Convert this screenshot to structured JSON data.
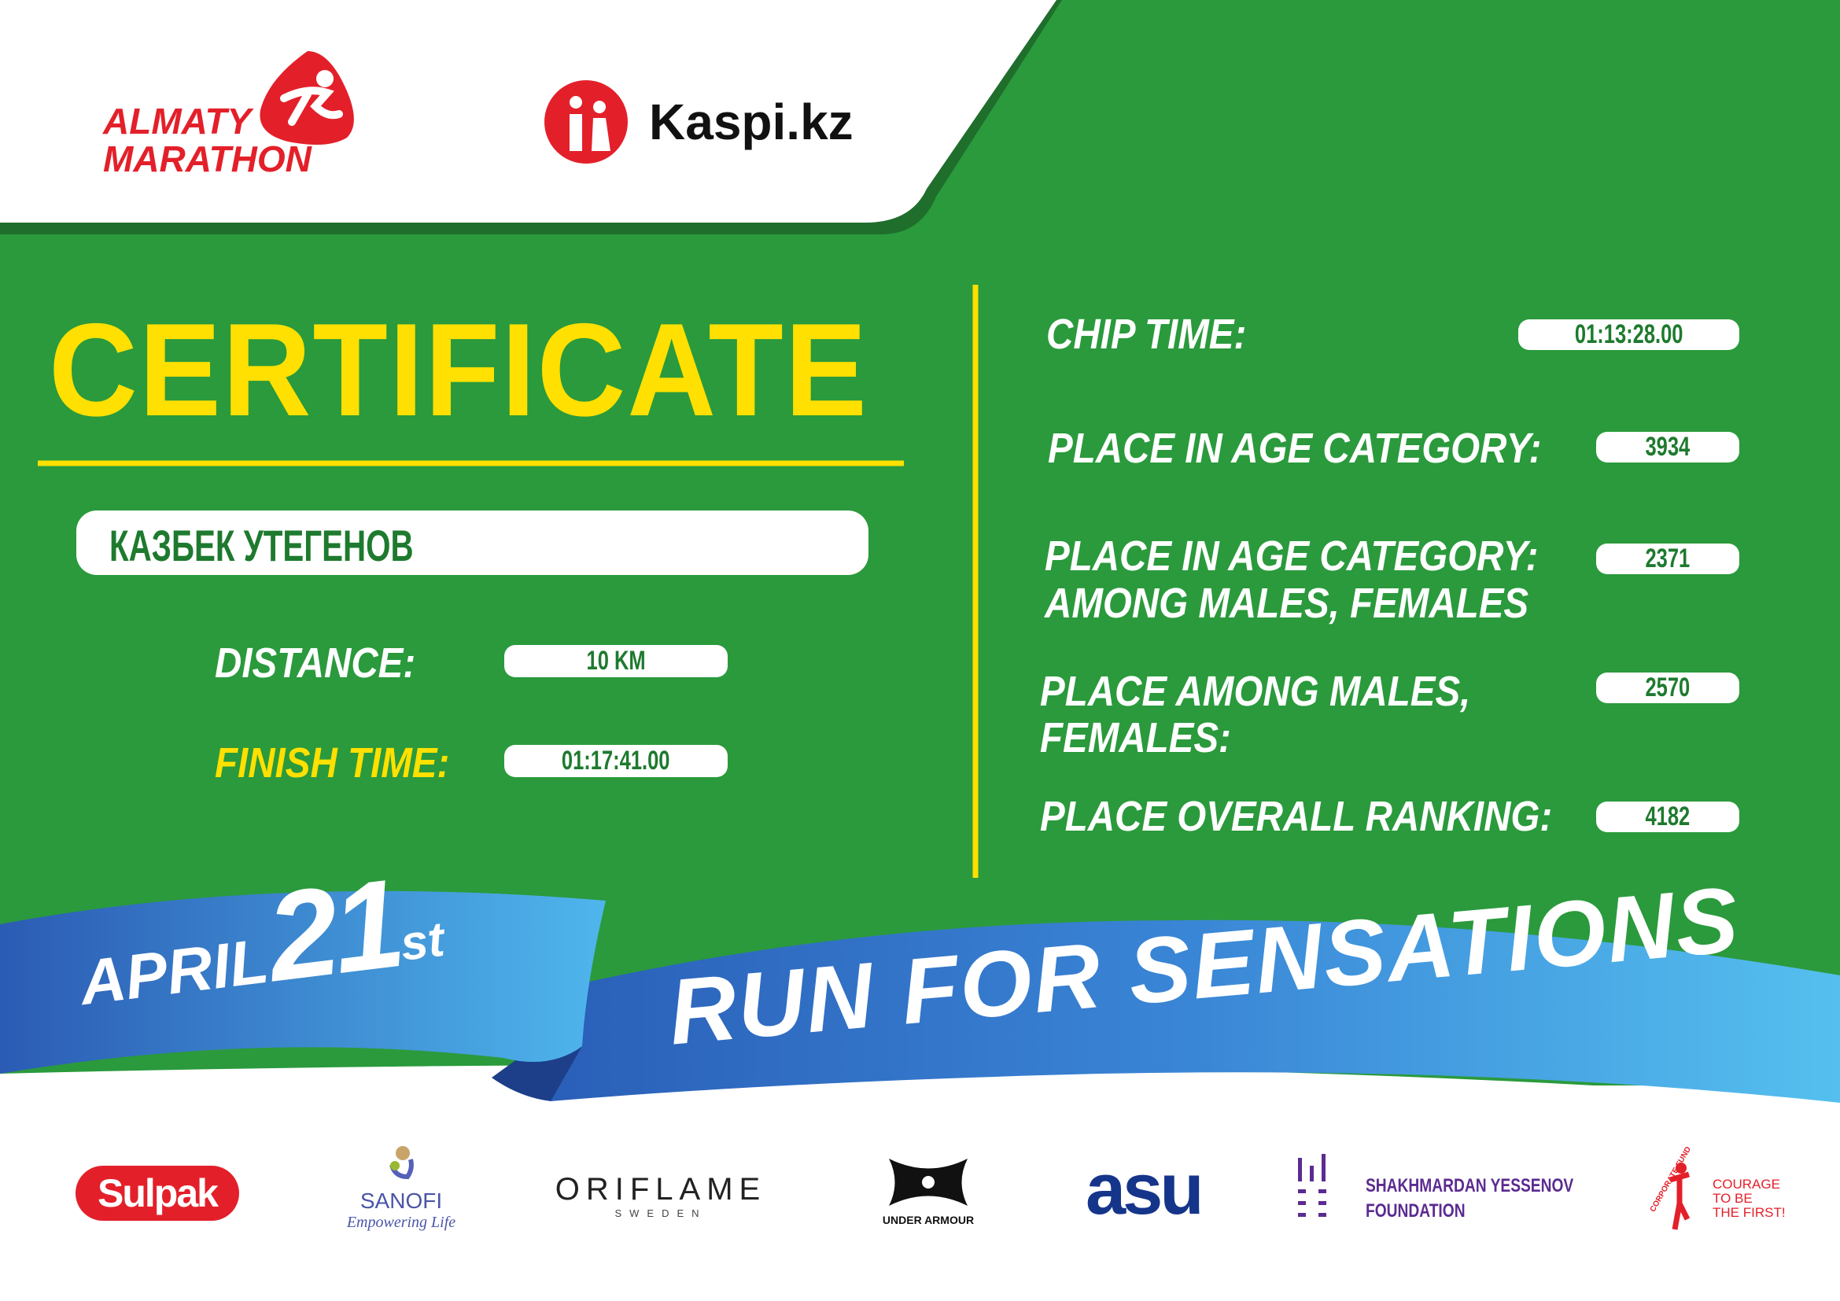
{
  "header": {
    "logo_main": "ALMATY MARATHON",
    "logo_sponsor": "Kaspi.kz"
  },
  "certificate": {
    "title": "CERTIFICATE",
    "runner_name": "КАЗБЕК УТЕГЕНОВ",
    "distance_label": "DISTANCE:",
    "distance_value": "10 KM",
    "finish_label": "FINISH TIME:",
    "finish_value": "01:17:41.00"
  },
  "results": {
    "chip_label": "CHIP TIME:",
    "chip_value": "01:13:28.00",
    "age_cat_label": "PLACE IN AGE CATEGORY:",
    "age_cat_value": "3934",
    "age_cat_gender_label_1": "PLACE IN AGE CATEGORY:",
    "age_cat_gender_label_2": "AMONG MALES, FEMALES",
    "age_cat_gender_value": "2371",
    "gender_label_1": "PLACE AMONG MALES,",
    "gender_label_2": "FEMALES:",
    "gender_value": "2570",
    "overall_label": "PLACE OVERALL RANKING:",
    "overall_value": "4182"
  },
  "ribbon": {
    "month": "APRIL",
    "day": "21",
    "suffix": "st",
    "slogan": "RUN FOR SENSATIONS"
  },
  "sponsors": {
    "sulpak": "Sulpak",
    "sanofi": "SANOFI",
    "sanofi_tagline": "Empowering Life",
    "oriflame": "ORIFLAME",
    "oriflame_sub": "SWEDEN",
    "under_armour": "UNDER ARMOUR",
    "asu": "asu",
    "yessenov_1": "SHAKHMARDAN YESSENOV",
    "yessenov_2": "FOUNDATION",
    "courage_fund": "CORPORATE FUND",
    "courage_1": "COURAGE",
    "courage_2": "TO BE",
    "courage_3": "THE FIRST!"
  },
  "colors": {
    "green": "#2a9a3c",
    "dark_green": "#1f6e2c",
    "yellow": "#ffe000",
    "red": "#e3202a",
    "blue": "#2f7fd0"
  }
}
